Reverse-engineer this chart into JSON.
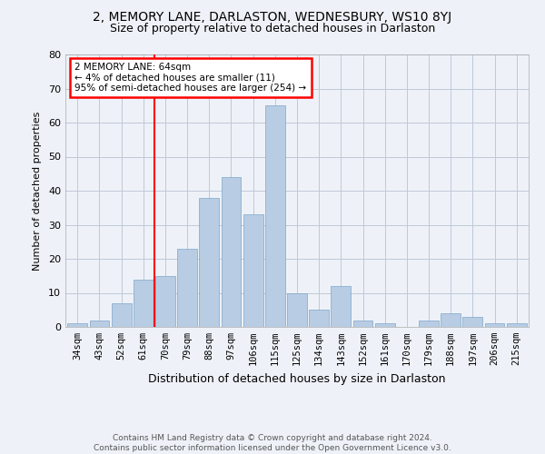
{
  "title": "2, MEMORY LANE, DARLASTON, WEDNESBURY, WS10 8YJ",
  "subtitle": "Size of property relative to detached houses in Darlaston",
  "xlabel": "Distribution of detached houses by size in Darlaston",
  "ylabel": "Number of detached properties",
  "footer_line1": "Contains HM Land Registry data © Crown copyright and database right 2024.",
  "footer_line2": "Contains public sector information licensed under the Open Government Licence v3.0.",
  "categories": [
    "34sqm",
    "43sqm",
    "52sqm",
    "61sqm",
    "70sqm",
    "79sqm",
    "88sqm",
    "97sqm",
    "106sqm",
    "115sqm",
    "125sqm",
    "134sqm",
    "143sqm",
    "152sqm",
    "161sqm",
    "170sqm",
    "179sqm",
    "188sqm",
    "197sqm",
    "206sqm",
    "215sqm"
  ],
  "values": [
    1,
    2,
    7,
    14,
    15,
    23,
    38,
    44,
    33,
    65,
    10,
    5,
    12,
    2,
    1,
    0,
    2,
    4,
    3,
    1,
    1
  ],
  "bar_color": "#b8cce4",
  "bar_edge_color": "#7ea6c8",
  "red_line_index": 3.5,
  "annotation_text": "2 MEMORY LANE: 64sqm\n← 4% of detached houses are smaller (11)\n95% of semi-detached houses are larger (254) →",
  "annotation_box_color": "white",
  "annotation_box_edge_color": "red",
  "red_line_color": "red",
  "ylim": [
    0,
    80
  ],
  "yticks": [
    0,
    10,
    20,
    30,
    40,
    50,
    60,
    70,
    80
  ],
  "grid_color": "#c0c8d8",
  "bg_color": "#eef2f8",
  "title_fontsize": 10,
  "subtitle_fontsize": 9,
  "xlabel_fontsize": 9,
  "ylabel_fontsize": 8,
  "tick_fontsize": 7.5,
  "footer_fontsize": 6.5,
  "footer_color": "#555555"
}
